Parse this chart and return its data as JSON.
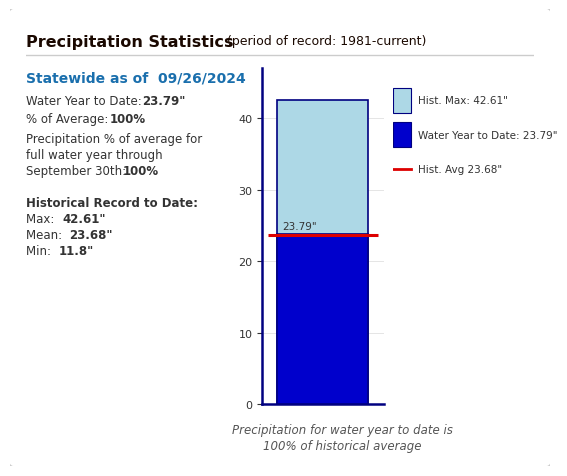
{
  "title_bold": "Precipitation Statistics",
  "title_light": " (period of record: 1981-current)",
  "statewide_label": "Statewide as of  09/26/2024",
  "water_year_label": "Water Year to Date: ",
  "water_year_value": "23.79\"",
  "pct_avg_label": "% of Average: ",
  "pct_avg_value": "100%",
  "pct_full_line1": "Precipitation % of average for",
  "pct_full_line2": "full water year through",
  "pct_full_line3": "September 30th: ",
  "pct_full_value": "100%",
  "hist_record_label": "Historical Record to Date:",
  "max_label": "Max: ",
  "max_value": "42.61\"",
  "mean_label": "Mean: ",
  "mean_value": "23.68\"",
  "min_label": "Min: ",
  "min_value": "11.8\"",
  "hist_max": 42.61,
  "water_year_to_date": 23.79,
  "hist_avg": 23.68,
  "bar_light_color": "#ADD8E6",
  "bar_dark_color": "#0000CC",
  "hist_avg_line_color": "#DD0000",
  "bar_border_color": "#000080",
  "legend_hist_max_label": "Hist. Max: 42.61\"",
  "legend_water_year_label": "Water Year to Date: 23.79\"",
  "legend_hist_avg_label": "Hist. Avg 23.68\"",
  "bar_label_text": "23.79\"",
  "caption_line1": "Precipitation for water year to date is",
  "caption_line2": "100% of historical average",
  "ylim": [
    0,
    47
  ],
  "yticks": [
    0,
    10,
    20,
    30,
    40
  ],
  "background_color": "#FFFFFF",
  "title_color": "#1a0800",
  "statewide_color": "#1a6fad",
  "text_color": "#333333",
  "caption_color": "#555555",
  "border_color": "#cccccc",
  "sep_color": "#cccccc"
}
